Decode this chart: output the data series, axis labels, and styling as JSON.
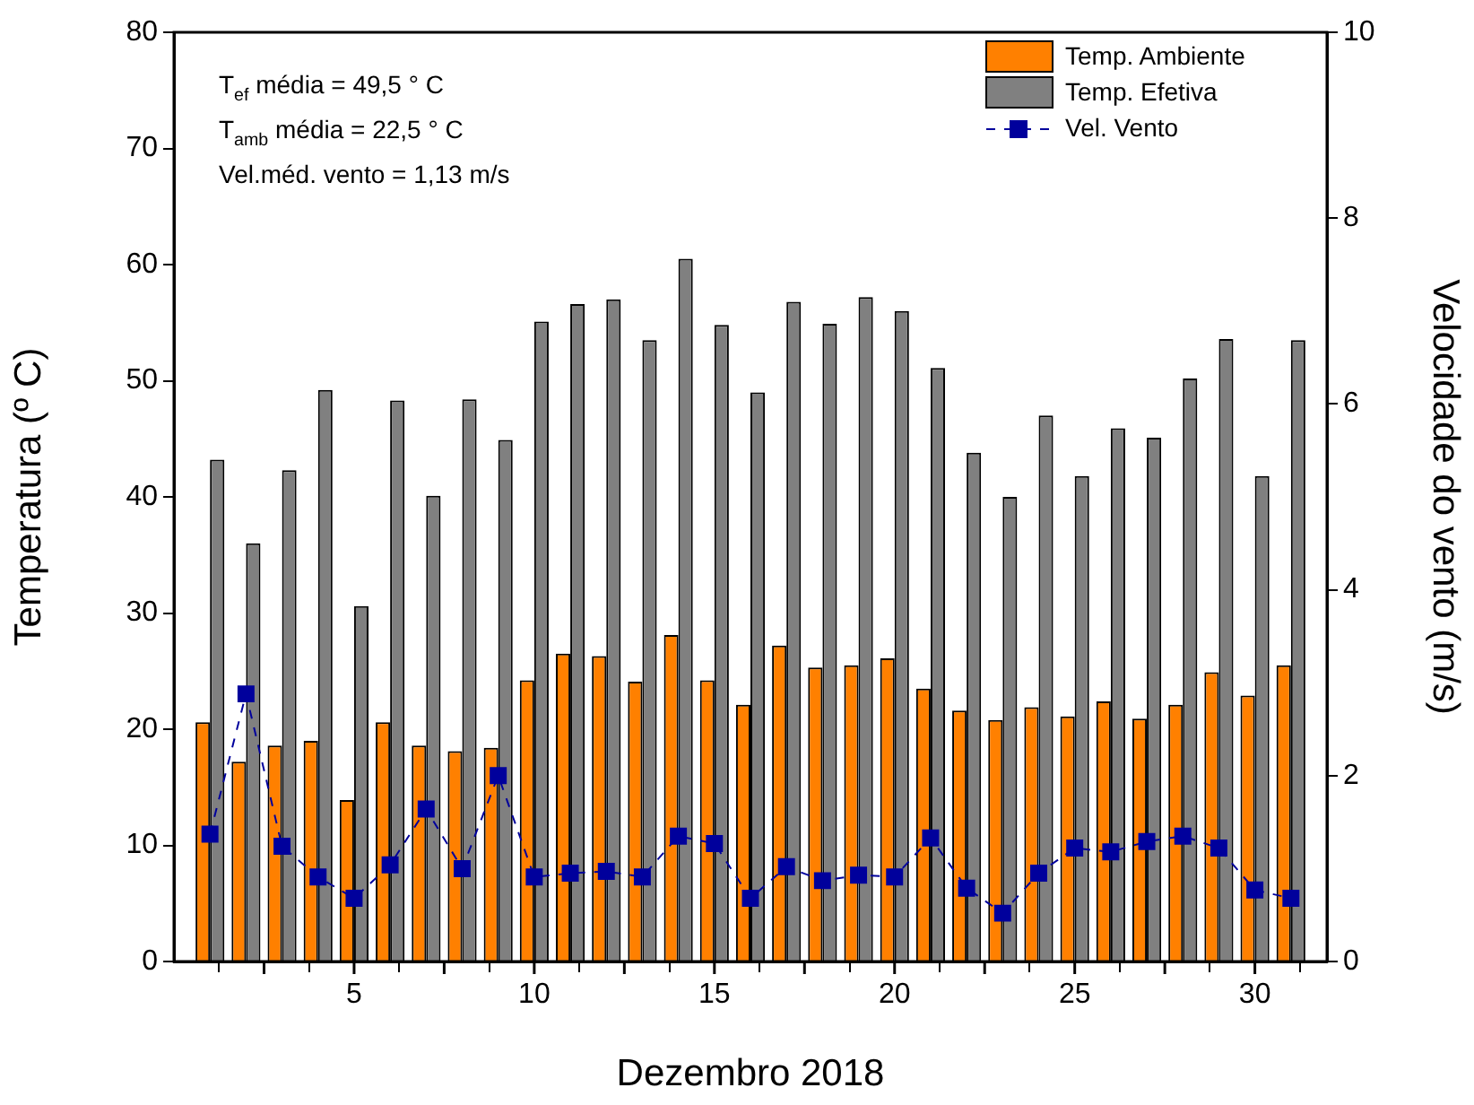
{
  "chart_data": {
    "type": "bar",
    "xlabel": "Dezembro 2018",
    "ylabel": "Temperatura (º C)",
    "y2label": "Velocidade do vento (m/s)",
    "x": [
      1,
      2,
      3,
      4,
      5,
      6,
      7,
      8,
      9,
      10,
      11,
      12,
      13,
      14,
      15,
      16,
      17,
      18,
      19,
      20,
      21,
      22,
      23,
      24,
      25,
      26,
      27,
      28,
      29,
      30,
      31
    ],
    "series": [
      {
        "name": "Temp. Ambiente",
        "color": "#ff8000",
        "values": [
          20.6,
          17.2,
          18.6,
          19,
          13.9,
          20.6,
          18.6,
          18.1,
          18.4,
          24.2,
          26.5,
          26.3,
          24.1,
          28.1,
          24.2,
          22.1,
          27.2,
          25.3,
          25.5,
          26.1,
          23.5,
          21.6,
          20.8,
          21.9,
          21.1,
          22.4,
          20.9,
          22.1,
          24.9,
          22.9,
          25.5
        ]
      },
      {
        "name": "Temp. Efetiva",
        "color": "#808080",
        "values": [
          43.2,
          36,
          42.3,
          49.2,
          30.6,
          48.3,
          40.1,
          48.4,
          44.9,
          55.1,
          56.6,
          57,
          53.5,
          60.5,
          54.8,
          49,
          56.8,
          54.9,
          57.2,
          56,
          51.1,
          43.8,
          40,
          47,
          41.8,
          45.9,
          45.1,
          50.2,
          53.6,
          41.8,
          53.5
        ]
      },
      {
        "name": "Vel. Vento",
        "type": "line",
        "axis": "y2",
        "color": "#00009c",
        "marker": "square",
        "line_style": "dashed",
        "values": [
          1.37,
          2.88,
          1.24,
          0.91,
          0.68,
          1.04,
          1.64,
          1,
          2,
          0.91,
          0.95,
          0.97,
          0.91,
          1.35,
          1.27,
          0.68,
          1.02,
          0.87,
          0.93,
          0.91,
          1.33,
          0.79,
          0.52,
          0.95,
          1.22,
          1.18,
          1.29,
          1.35,
          1.22,
          0.77,
          0.68
        ]
      }
    ],
    "xlim": [
      0,
      32
    ],
    "xticks": [
      {
        "value": 2.5,
        "label": null
      },
      5,
      {
        "value": 7.5,
        "label": null
      },
      10,
      {
        "value": 12.5,
        "label": null
      },
      15,
      {
        "value": 17.5,
        "label": null
      },
      20,
      {
        "value": 22.5,
        "label": null
      },
      25,
      {
        "value": 27.5,
        "label": null
      },
      30
    ],
    "ylim": [
      0,
      80
    ],
    "yticks": [
      0,
      10,
      20,
      30,
      40,
      50,
      60,
      70,
      80
    ],
    "y2lim": [
      0,
      10
    ],
    "y2ticks": [
      0,
      2,
      4,
      6,
      8,
      10
    ],
    "grid": false,
    "legend": "top right",
    "annotations": [
      "T$_{ef}$ média = 49,5 ° C",
      "T$_{amb}$ média = 22,5 ° C",
      "Vel.méd. vento = 1,13 m/s"
    ]
  }
}
